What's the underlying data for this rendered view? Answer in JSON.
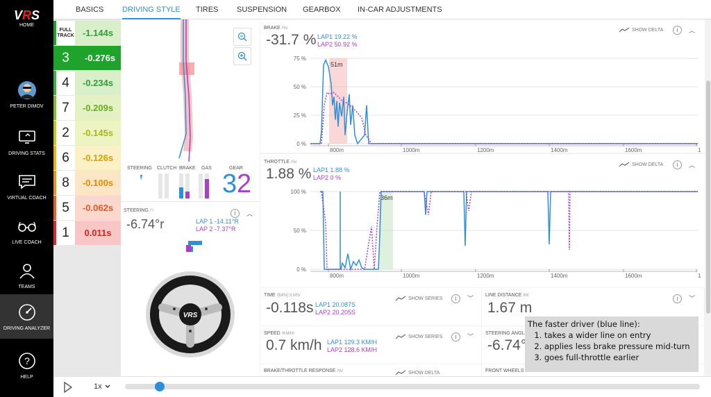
{
  "nav": {
    "home": "HOME",
    "user": "PETER DIMOV",
    "items": [
      "DRIVING STATS",
      "VIRTUAL COACH",
      "LIVE COACH",
      "TEAMS",
      "DRIVING ANALYZER",
      "HELP"
    ]
  },
  "tabs": [
    "BASICS",
    "DRIVING STYLE",
    "TIRES",
    "SUSPENSION",
    "GEARBOX",
    "IN-CAR ADJUSTMENTS"
  ],
  "active_tab": "DRIVING STYLE",
  "sectors": {
    "full_track_label": "FULL TRACK",
    "full_track_delta": "-1.144s",
    "rows": [
      {
        "num": "3",
        "delta": "-0.276s",
        "bg": "#1fa32d",
        "fg": "#ffffff"
      },
      {
        "num": "4",
        "delta": "-0.234s",
        "bg": "#d8efc9",
        "fg": "#2f9e3a"
      },
      {
        "num": "7",
        "delta": "-0.209s",
        "bg": "#e3f1c3",
        "fg": "#67ad1f"
      },
      {
        "num": "2",
        "delta": "-0.145s",
        "bg": "#eef4c1",
        "fg": "#a6b913"
      },
      {
        "num": "6",
        "delta": "-0.126s",
        "bg": "#fbf0c6",
        "fg": "#d4a200"
      },
      {
        "num": "8",
        "delta": "-0.100s",
        "bg": "#fde6c5",
        "fg": "#e78b00"
      },
      {
        "num": "5",
        "delta": "-0.062s",
        "bg": "#fcd7cc",
        "fg": "#e05a2b"
      },
      {
        "num": "1",
        "delta": "0.011s",
        "bg": "#f9c6c6",
        "fg": "#dd1f1f"
      }
    ],
    "border_colors": [
      "#16a82a",
      "#16a82a",
      "#3db43a",
      "#7cc12a",
      "#c7c714",
      "#f0b400",
      "#f39012",
      "#ee5d21",
      "#e22727"
    ]
  },
  "inputs": {
    "labels": [
      "STEERING",
      "CLUTCH",
      "BRAKE",
      "GAS",
      "GEAR"
    ],
    "gear_lap1": "3",
    "gear_lap2": "2"
  },
  "steering": {
    "title": "STEERING",
    "unit": "/°/",
    "value": "-6.74°r",
    "lap1": "LAP 1 -14.11°R",
    "lap2": "LAP 2 -7.37°R"
  },
  "brake": {
    "title": "BRAKE",
    "unit": "/%/",
    "value": "-31.7 %",
    "lap1": "LAP1 19.22 %",
    "lap2": "LAP2 50.92 %",
    "show_delta": "SHOW DELTA",
    "marker": "51m",
    "yticks": [
      "75 %",
      "50 %",
      "25 %",
      "0 %"
    ],
    "xticks": [
      "800m",
      "1000m",
      "1200m",
      "1400m",
      "1600m",
      "1"
    ]
  },
  "throttle": {
    "title": "THROTTLE",
    "unit": "/%/",
    "value": "1.88 %",
    "lap1": "LAP1 1.88 %",
    "lap2": "LAP2 0 %",
    "show_delta": "SHOW DELTA",
    "marker": "36m",
    "yticks": [
      "100 %",
      "50 %",
      "0 %"
    ],
    "xticks": [
      "800m",
      "1000m",
      "1200m",
      "1400m",
      "1600m",
      "1"
    ]
  },
  "time": {
    "title": "TIME",
    "unit": "/[MIN]:S.MS/",
    "value": "-0.118s",
    "lap1": "LAP1 20.087S",
    "lap2": "LAP2 20.205S",
    "show_series": "SHOW SERIES"
  },
  "line_distance": {
    "title": "LINE DISTANCE",
    "unit": "/M/",
    "value": "1.67 m"
  },
  "speed": {
    "title": "SPEED",
    "unit": "/KM/H/",
    "value": "0.7 km/h",
    "lap1": "LAP1 129.3 KM/H",
    "lap2": "LAP2 128.6 KM/H",
    "show_series": "SHOW SERIES"
  },
  "steering_angle": {
    "title": "STEERING ANGLE",
    "value": "-6.74°"
  },
  "brake_throttle": {
    "title": "BRAKE/THROTTLE RESPONSE",
    "unit": "/%/",
    "show_delta": "SHOW DELTA"
  },
  "front_wheels": {
    "title": "FRONT WHEELS SLIP",
    "unit": "/%/"
  },
  "note": {
    "heading": "The faster driver (blue line):",
    "items": [
      "takes a wider line on entry",
      "applies less brake pressure mid-turn",
      "goes full-throttle earlier"
    ]
  },
  "playback": {
    "speed": "1x",
    "progress": 0.06
  },
  "colors": {
    "lap1": "#2e8fd9",
    "lap2": "#a83fc4",
    "accent": "#2e8fd9"
  }
}
